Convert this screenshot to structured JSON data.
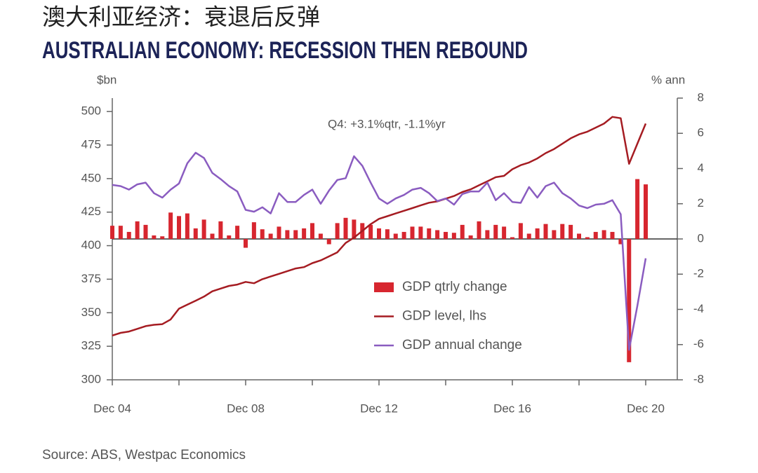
{
  "chart_data": {
    "type": "combo",
    "title": "澳大利亚经济：衰退后反弹",
    "subtitle": "AUSTRALIAN ECONOMY: RECESSION THEN REBOUND",
    "y_label": "$bn",
    "y2_label": "% ann",
    "annotation": "Q4: +3.1%qtr, -1.1%yr",
    "source": "Source: ABS, Westpac Economics",
    "categories": [
      "Dec 04",
      null,
      null,
      null,
      null,
      null,
      null,
      null,
      null,
      null,
      null,
      null,
      null,
      null,
      null,
      null,
      "Dec 08",
      null,
      null,
      null,
      null,
      null,
      null,
      null,
      null,
      null,
      null,
      null,
      null,
      null,
      null,
      null,
      "Dec 12",
      null,
      null,
      null,
      null,
      null,
      null,
      null,
      null,
      null,
      null,
      null,
      null,
      null,
      null,
      null,
      "Dec 16",
      null,
      null,
      null,
      null,
      null,
      null,
      null,
      null,
      null,
      null,
      null,
      null,
      null,
      null,
      null,
      "Dec 20"
    ],
    "ylim": [
      300,
      510
    ],
    "yticks": [
      300,
      325,
      350,
      375,
      400,
      425,
      450,
      475,
      500
    ],
    "y2lim": [
      -8,
      8
    ],
    "y2ticks": [
      -8,
      -6,
      -4,
      -2,
      0,
      2,
      4,
      6,
      8
    ],
    "series": [
      {
        "name": "GDP qtrly change",
        "type": "bar",
        "axis": "y2",
        "color": "#d7262f",
        "values": [
          0.75,
          0.75,
          0.4,
          1.0,
          0.8,
          0.2,
          0.15,
          1.5,
          1.3,
          1.45,
          0.6,
          1.1,
          0.3,
          1.0,
          0.2,
          0.75,
          -0.5,
          0.95,
          0.55,
          0.3,
          0.7,
          0.5,
          0.5,
          0.6,
          0.9,
          0.3,
          -0.3,
          0.9,
          1.2,
          1.1,
          0.9,
          0.8,
          0.6,
          0.55,
          0.3,
          0.4,
          0.7,
          0.7,
          0.6,
          0.5,
          0.4,
          0.35,
          0.8,
          0.2,
          1.0,
          0.5,
          0.8,
          0.7,
          0.1,
          0.9,
          0.3,
          0.6,
          0.85,
          0.5,
          0.85,
          0.8,
          0.3,
          0.1,
          0.4,
          0.5,
          0.4,
          -0.3,
          -7.0,
          3.4,
          3.1
        ]
      },
      {
        "name": "GDP level, lhs",
        "type": "line",
        "color": "#a51c22",
        "values": [
          333,
          335,
          336,
          338,
          340,
          341,
          341.5,
          345,
          353,
          356,
          359,
          362,
          366,
          368,
          370,
          371,
          373,
          372,
          375,
          377,
          379,
          381,
          383,
          384,
          387,
          389,
          392,
          395,
          402,
          406,
          411,
          416,
          420,
          422,
          424,
          426,
          428,
          430,
          432,
          433,
          435,
          437,
          440,
          442,
          445,
          448,
          451,
          452,
          457,
          460,
          462,
          465,
          469,
          472,
          476,
          480,
          483,
          485,
          488,
          491,
          496,
          495,
          461,
          476,
          491
        ]
      },
      {
        "name": "GDP annual change",
        "type": "line",
        "axis": "y2",
        "color": "#8a5cc0",
        "values": [
          3.07,
          3.0,
          2.8,
          3.1,
          3.2,
          2.6,
          2.35,
          2.8,
          3.15,
          4.3,
          4.9,
          4.6,
          3.75,
          3.4,
          3.0,
          2.7,
          1.65,
          1.55,
          1.8,
          1.45,
          2.6,
          2.1,
          2.1,
          2.5,
          2.8,
          2.0,
          2.75,
          3.35,
          3.45,
          4.7,
          4.15,
          3.2,
          2.3,
          2.0,
          2.3,
          2.5,
          2.8,
          2.9,
          2.6,
          2.15,
          2.3,
          1.95,
          2.55,
          2.7,
          2.7,
          3.2,
          2.2,
          2.6,
          2.1,
          2.05,
          2.95,
          2.35,
          3.0,
          3.2,
          2.6,
          2.3,
          1.9,
          1.75,
          1.95,
          2.0,
          2.2,
          1.4,
          -6.3,
          -3.8,
          -1.1
        ]
      }
    ]
  }
}
